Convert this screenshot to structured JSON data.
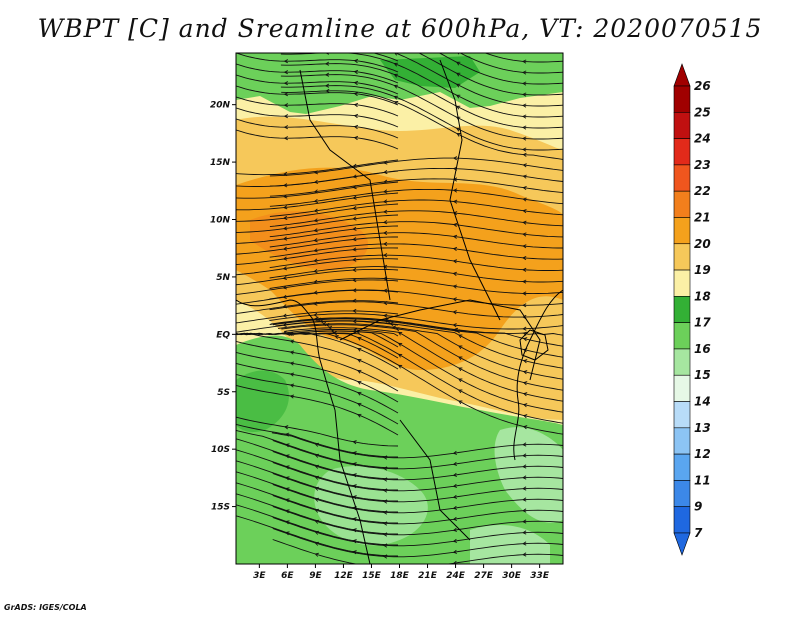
{
  "title": "WBPT [C] and Sreamline at 600hPa, VT: 2020070515",
  "credit": "GrADS: IGES/COLA",
  "map": {
    "lat_range": [
      -20,
      24.5
    ],
    "lon_range": [
      0.5,
      35.5
    ],
    "lat_ticks": [
      {
        "value": 20,
        "label": "20N"
      },
      {
        "value": 15,
        "label": "15N"
      },
      {
        "value": 10,
        "label": "10N"
      },
      {
        "value": 5,
        "label": "5N"
      },
      {
        "value": 0,
        "label": "EQ"
      },
      {
        "value": -5,
        "label": "5S"
      },
      {
        "value": -10,
        "label": "10S"
      },
      {
        "value": -15,
        "label": "15S"
      }
    ],
    "lon_ticks": [
      {
        "value": 3,
        "label": "3E"
      },
      {
        "value": 6,
        "label": "6E"
      },
      {
        "value": 9,
        "label": "9E"
      },
      {
        "value": 12,
        "label": "12E"
      },
      {
        "value": 15,
        "label": "15E"
      },
      {
        "value": 18,
        "label": "18E"
      },
      {
        "value": 21,
        "label": "21E"
      },
      {
        "value": 24,
        "label": "24E"
      },
      {
        "value": 27,
        "label": "27E"
      },
      {
        "value": 30,
        "label": "30E"
      },
      {
        "value": 33,
        "label": "33E"
      }
    ]
  },
  "colorbar": {
    "labels": [
      "26",
      "25",
      "24",
      "23",
      "22",
      "21",
      "20",
      "19",
      "18",
      "17",
      "16",
      "15",
      "14",
      "13",
      "12",
      "11",
      "9",
      "7"
    ],
    "colors": [
      "#a00000",
      "#c01010",
      "#e22a1a",
      "#f0561e",
      "#f27f1c",
      "#f4a11c",
      "#f6c85a",
      "#fbf0a6",
      "#33b035",
      "#6cd05a",
      "#a6e6a0",
      "#e6f8e6",
      "#b8dcf8",
      "#8cc4f4",
      "#5aa6f0",
      "#3c88e8",
      "#1f68e0"
    ],
    "top_tip_color": "#a00000",
    "bottom_tip_color": "#1f68e0"
  }
}
